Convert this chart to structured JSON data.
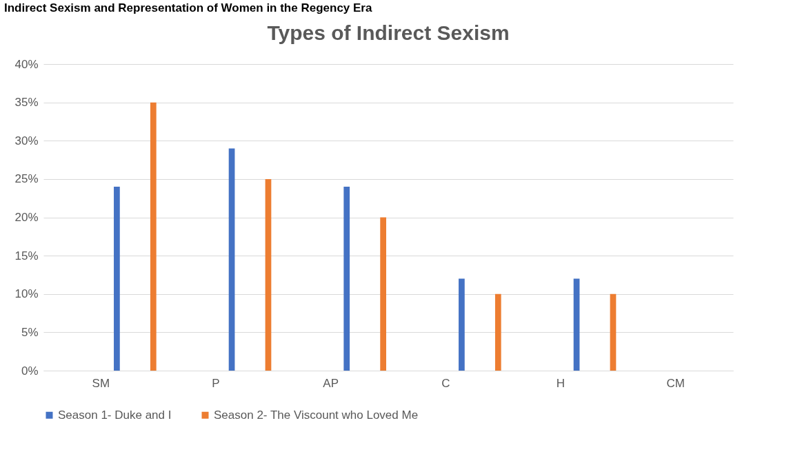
{
  "chart_data": {
    "type": "bar",
    "title": "Types of Indirect Sexism",
    "annotations": [
      "Indirect Sexism and Representation of Women in the Regency Era"
    ],
    "categories": [
      "SM",
      "P",
      "AP",
      "C",
      "H",
      "CM"
    ],
    "series": [
      {
        "name": "Season 1- Duke and I",
        "color": "#4472c4",
        "values": [
          24,
          29,
          24,
          12,
          12,
          0
        ]
      },
      {
        "name": "Season 2- The Viscount who Loved Me",
        "color": "#ed7d31",
        "values": [
          35,
          25,
          20,
          10,
          10,
          0
        ]
      }
    ],
    "ylim": [
      0,
      40
    ],
    "yticks": [
      {
        "value": 0,
        "label": "0%"
      },
      {
        "value": 5,
        "label": "5%"
      },
      {
        "value": 10,
        "label": "10%"
      },
      {
        "value": 15,
        "label": "15%"
      },
      {
        "value": 20,
        "label": "20%"
      },
      {
        "value": 25,
        "label": "25%"
      },
      {
        "value": 30,
        "label": "30%"
      },
      {
        "value": 35,
        "label": "35%"
      },
      {
        "value": 40,
        "label": "40%"
      }
    ],
    "grid": "y",
    "legend": "bottom"
  }
}
